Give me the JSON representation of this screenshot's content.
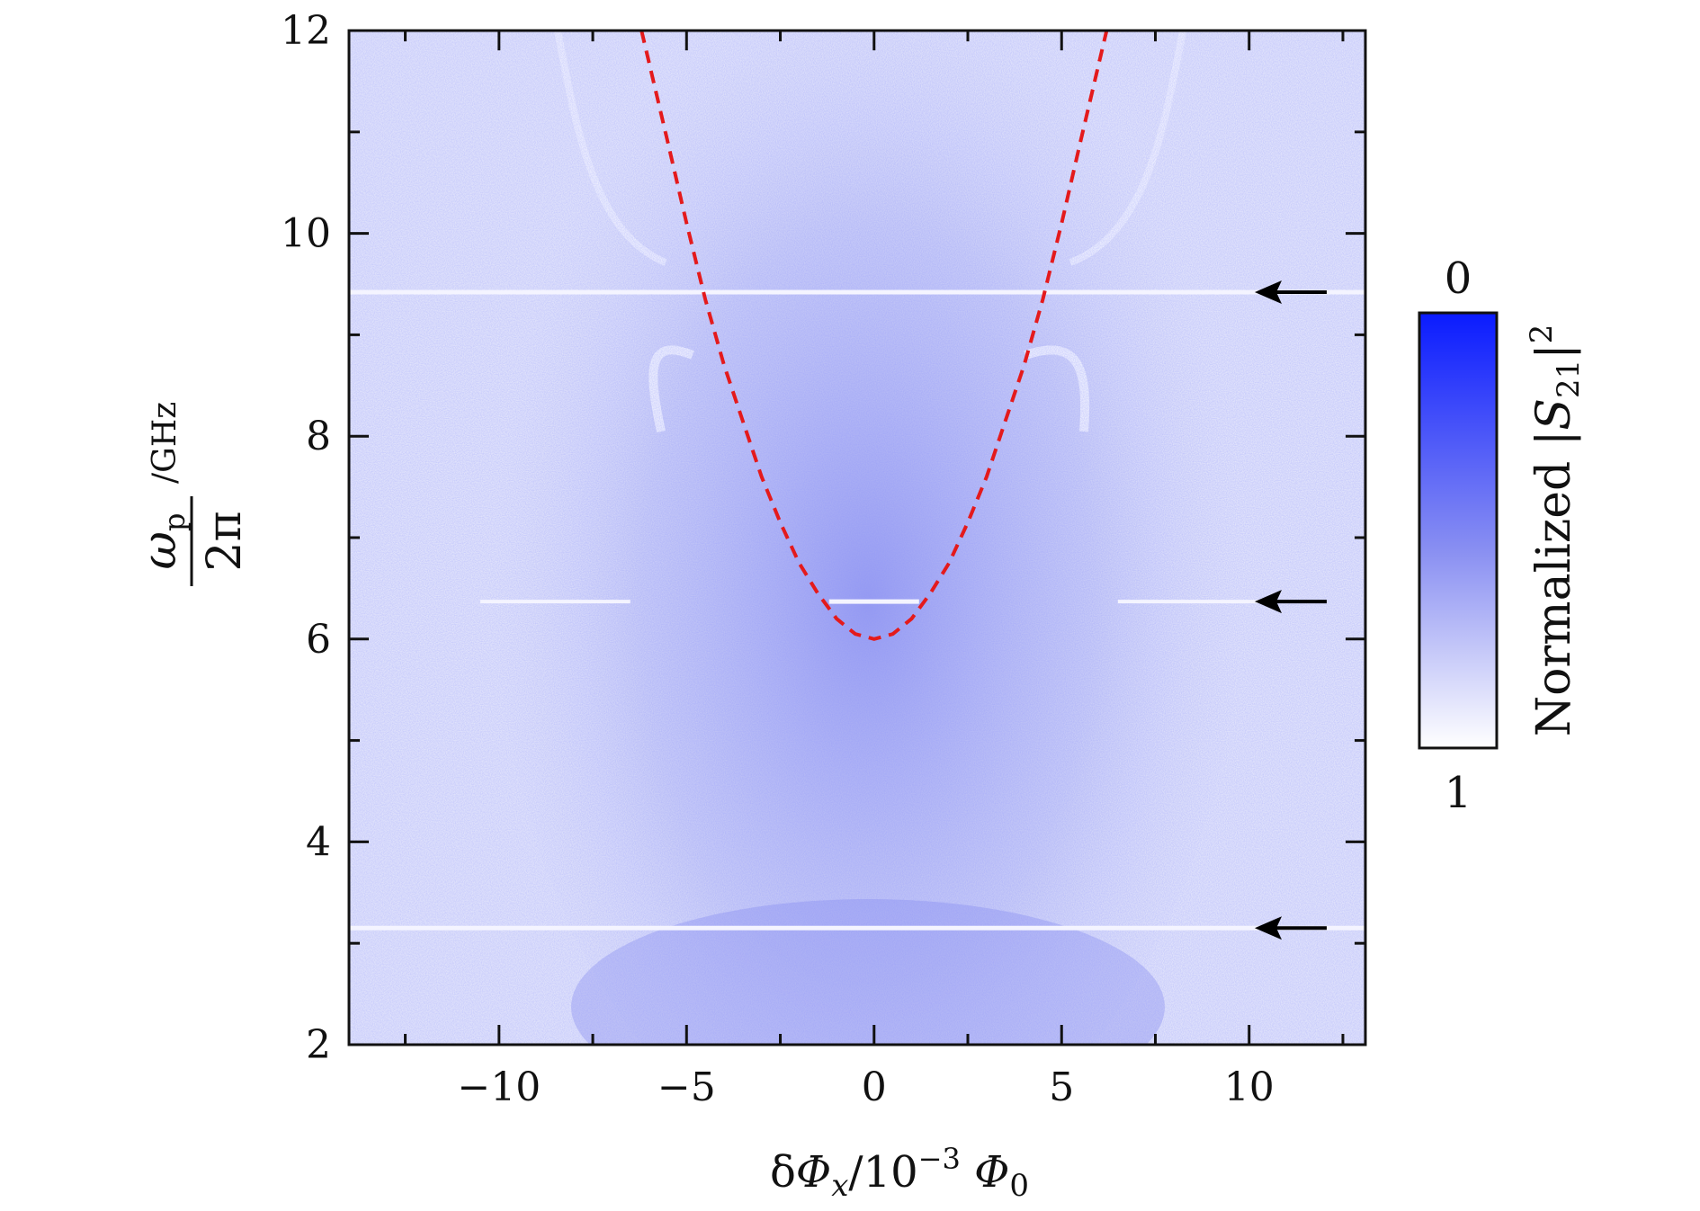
{
  "chart_data": {
    "type": "heatmap",
    "title": "",
    "xlabel": {
      "text": "δΦx/10−3 Φ0",
      "parts": [
        "δ",
        "Φ",
        "x",
        "/10",
        "−3",
        " Φ",
        "0"
      ]
    },
    "ylabel": {
      "text": "ωp/2π /GHz",
      "numerator": "ω",
      "numerator_sub": "p",
      "denominator": "2π",
      "unit": "/GHz"
    },
    "xlim": [
      -14,
      13.1
    ],
    "ylim": [
      2,
      12
    ],
    "xticks": [
      -10,
      -5,
      0,
      5,
      10
    ],
    "xtick_labels": [
      "−10",
      "−5",
      "0",
      "5",
      "10"
    ],
    "yticks": [
      2,
      4,
      6,
      8,
      10,
      12
    ],
    "ytick_labels": [
      "2",
      "4",
      "6",
      "8",
      "10",
      "12"
    ],
    "x_minor_step": 2.5,
    "y_minor_step": 1,
    "colorbar": {
      "label": "Normalized |S21|2",
      "label_parts": [
        "Normalized |",
        "S",
        "21",
        "|",
        "2"
      ],
      "top_label": "0",
      "bottom_label": "1",
      "top_color": "#0a1bff",
      "bottom_color": "#ffffff"
    },
    "fit_curve": {
      "style": "dashed",
      "color": "#e41a1c",
      "points": [
        [
          -6.2,
          12.0
        ],
        [
          -5.5,
          10.9
        ],
        [
          -5.0,
          10.1
        ],
        [
          -4.5,
          9.35
        ],
        [
          -4.0,
          8.7
        ],
        [
          -3.5,
          8.15
        ],
        [
          -3.0,
          7.6
        ],
        [
          -2.5,
          7.15
        ],
        [
          -2.0,
          6.75
        ],
        [
          -1.5,
          6.45
        ],
        [
          -1.0,
          6.2
        ],
        [
          -0.5,
          6.05
        ],
        [
          0.0,
          6.0
        ],
        [
          0.5,
          6.05
        ],
        [
          1.0,
          6.2
        ],
        [
          1.5,
          6.45
        ],
        [
          2.0,
          6.75
        ],
        [
          2.5,
          7.15
        ],
        [
          3.0,
          7.6
        ],
        [
          3.5,
          8.15
        ],
        [
          4.0,
          8.7
        ],
        [
          4.5,
          9.35
        ],
        [
          5.0,
          10.1
        ],
        [
          5.5,
          10.9
        ],
        [
          6.2,
          12.0
        ]
      ]
    },
    "resonances": [
      {
        "y": 9.42,
        "extent": "full"
      },
      {
        "y": 6.37,
        "extent": "partial"
      },
      {
        "y": 3.15,
        "extent": "full"
      }
    ],
    "arrows": [
      {
        "y": 9.42,
        "direction": "left",
        "color": "#000000"
      },
      {
        "y": 6.37,
        "direction": "left",
        "color": "#000000"
      },
      {
        "y": 3.15,
        "direction": "left",
        "color": "#000000"
      }
    ],
    "colors": {
      "background_light": "#e8e9fb",
      "background_dark": "#8a8ff0",
      "resonance_line": "#f4f4ff"
    }
  }
}
